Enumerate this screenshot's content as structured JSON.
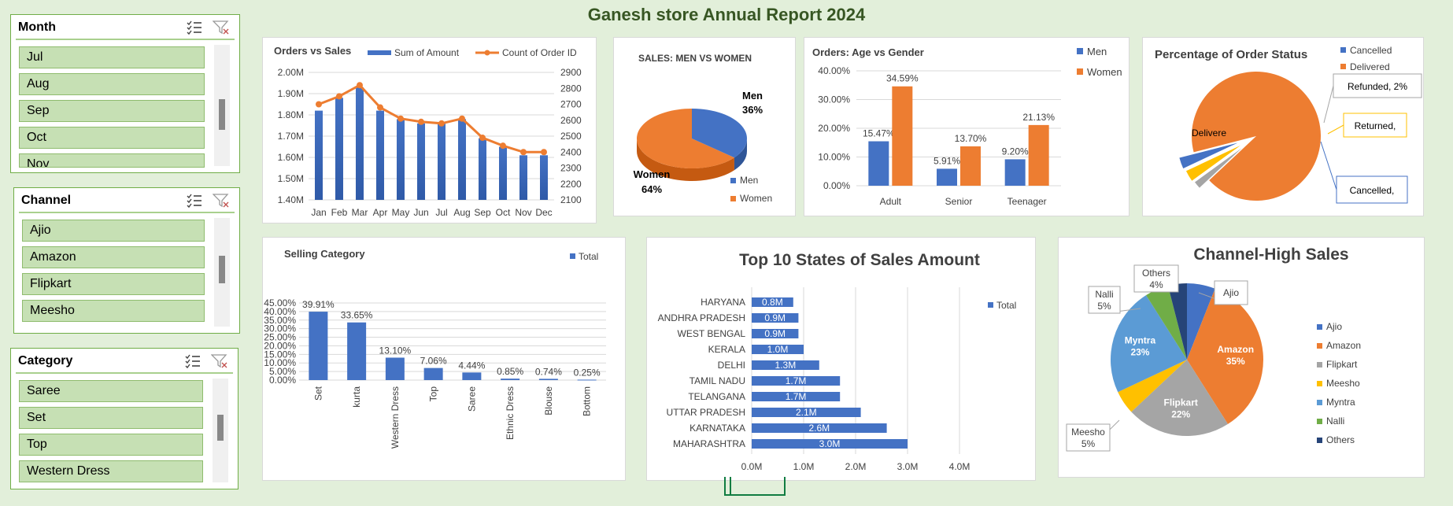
{
  "report_title": "Ganesh store Annual Report 2024",
  "slicers": {
    "month": {
      "title": "Month",
      "items": [
        "Jul",
        "Aug",
        "Sep",
        "Oct",
        "Nov"
      ]
    },
    "channel": {
      "title": "Channel",
      "items": [
        "Ajio",
        "Amazon",
        "Flipkart",
        "Meesho"
      ]
    },
    "category": {
      "title": "Category",
      "items": [
        "Saree",
        "Set",
        "Top",
        "Western Dress"
      ]
    }
  },
  "icon_names": {
    "multiselect": "multiselect-icon",
    "clear_filter": "clear-filter-icon"
  },
  "colors": {
    "blue": "#4472c4",
    "orange": "#ed7d31",
    "gray": "#a5a5a5",
    "yellow": "#ffc000",
    "lightblue": "#5b9bd5",
    "green": "#70ad47",
    "navy": "#264478",
    "title_green": "#375623",
    "slicer_item": "#c6e0b4"
  },
  "chart_data": [
    {
      "id": "orders_vs_sales",
      "type": "bar",
      "title": "Orders vs Sales",
      "categories": [
        "Jan",
        "Feb",
        "Mar",
        "Apr",
        "May",
        "Jun",
        "Jul",
        "Aug",
        "Sep",
        "Oct",
        "Nov",
        "Dec"
      ],
      "series": [
        {
          "name": "Sum of Amount",
          "type": "bar",
          "axis": "left",
          "values": [
            1820000,
            1880000,
            1930000,
            1820000,
            1780000,
            1760000,
            1760000,
            1780000,
            1690000,
            1650000,
            1610000,
            1610000
          ]
        },
        {
          "name": "Count of Order ID",
          "type": "line",
          "axis": "right",
          "values": [
            2700,
            2750,
            2820,
            2680,
            2610,
            2590,
            2580,
            2610,
            2490,
            2440,
            2400,
            2400
          ]
        }
      ],
      "left_axis": {
        "min": 1400000,
        "max": 2000000,
        "ticks": [
          "1.40M",
          "1.50M",
          "1.60M",
          "1.70M",
          "1.80M",
          "1.90M",
          "2.00M"
        ]
      },
      "right_axis": {
        "min": 2100,
        "max": 2900,
        "ticks": [
          "2100",
          "2200",
          "2300",
          "2400",
          "2500",
          "2600",
          "2700",
          "2800",
          "2900"
        ]
      },
      "legend": "top"
    },
    {
      "id": "sales_men_women",
      "type": "pie",
      "title": "SALES: MEN VS WOMEN",
      "categories": [
        "Men",
        "Women"
      ],
      "values": [
        36,
        64
      ],
      "labels": [
        "36%",
        "64%"
      ],
      "legend": "bottom-right"
    },
    {
      "id": "orders_age_gender",
      "type": "bar",
      "title": "Orders: Age vs Gender",
      "categories": [
        "Adult",
        "Senior",
        "Teenager"
      ],
      "series": [
        {
          "name": "Men",
          "values": [
            15.47,
            5.91,
            9.2
          ],
          "labels": [
            "15.47%",
            "5.91%",
            "9.20%"
          ]
        },
        {
          "name": "Women",
          "values": [
            34.59,
            13.7,
            21.13
          ],
          "labels": [
            "34.59%",
            "13.70%",
            "21.13%"
          ]
        }
      ],
      "ylim": [
        0,
        40
      ],
      "ticks": [
        "0.00%",
        "10.00%",
        "20.00%",
        "30.00%",
        "40.00%"
      ],
      "legend": "top-right"
    },
    {
      "id": "order_status",
      "type": "pie",
      "title": "Percentage of Order Status",
      "categories": [
        "Cancelled",
        "Delivered"
      ],
      "slices": [
        {
          "name": "Delivered",
          "value": 92,
          "label": "Delivere"
        },
        {
          "name": "Refunded",
          "value": 2,
          "label": "Refunded, 2%"
        },
        {
          "name": "Returned",
          "value": 3,
          "label": "Returned,"
        },
        {
          "name": "Cancelled",
          "value": 3,
          "label": "Cancelled,"
        }
      ],
      "legend": "top-right"
    },
    {
      "id": "selling_category",
      "type": "bar",
      "title": "Selling Category",
      "categories": [
        "Set",
        "kurta",
        "Western Dress",
        "Top",
        "Saree",
        "Ethnic Dress",
        "Blouse",
        "Bottom"
      ],
      "series": [
        {
          "name": "Total",
          "values": [
            39.91,
            33.65,
            13.1,
            7.06,
            4.44,
            0.85,
            0.74,
            0.25
          ],
          "labels": [
            "39.91%",
            "33.65%",
            "13.10%",
            "7.06%",
            "4.44%",
            "0.85%",
            "0.74%",
            "0.25%"
          ]
        }
      ],
      "ylim": [
        0,
        45
      ],
      "ticks": [
        "0.00%",
        "5.00%",
        "10.00%",
        "15.00%",
        "20.00%",
        "25.00%",
        "30.00%",
        "35.00%",
        "40.00%",
        "45.00%"
      ],
      "legend": "top-right"
    },
    {
      "id": "top_states",
      "type": "bar",
      "orientation": "horizontal",
      "title": "Top 10 States of Sales Amount",
      "categories": [
        "HARYANA",
        "ANDHRA PRADESH",
        "WEST BENGAL",
        "KERALA",
        "DELHI",
        "TAMIL NADU",
        "TELANGANA",
        "UTTAR PRADESH",
        "KARNATAKA",
        "MAHARASHTRA"
      ],
      "series": [
        {
          "name": "Total",
          "values": [
            0.8,
            0.9,
            0.9,
            1.0,
            1.3,
            1.7,
            1.7,
            2.1,
            2.6,
            3.0
          ],
          "labels": [
            "0.8M",
            "0.9M",
            "0.9M",
            "1.0M",
            "1.3M",
            "1.7M",
            "1.7M",
            "2.1M",
            "2.6M",
            "3.0M"
          ]
        }
      ],
      "xlim": [
        0,
        4
      ],
      "ticks": [
        "0.0M",
        "1.0M",
        "2.0M",
        "3.0M",
        "4.0M"
      ],
      "legend": "right"
    },
    {
      "id": "channel_sales",
      "type": "pie",
      "title": "Channel-High Sales",
      "slices": [
        {
          "name": "Ajio",
          "value": 6,
          "label": "Ajio"
        },
        {
          "name": "Amazon",
          "value": 35,
          "label": "Amazon\n35%"
        },
        {
          "name": "Flipkart",
          "value": 22,
          "label": "Flipkart\n22%"
        },
        {
          "name": "Meesho",
          "value": 5,
          "label": "Meesho\n5%"
        },
        {
          "name": "Myntra",
          "value": 23,
          "label": "Myntra\n23%"
        },
        {
          "name": "Nalli",
          "value": 5,
          "label": "Nalli\n5%"
        },
        {
          "name": "Others",
          "value": 4,
          "label": "Others\n4%"
        }
      ],
      "legend": "right"
    }
  ]
}
